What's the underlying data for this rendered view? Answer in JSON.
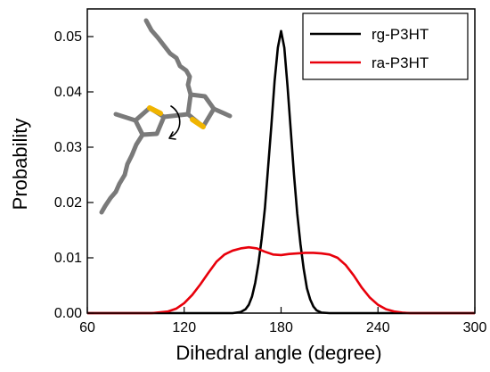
{
  "chart_data": {
    "type": "line",
    "xlabel": "Dihedral angle (degree)",
    "ylabel": "Probability",
    "xlim": [
      60,
      300
    ],
    "ylim": [
      0.0,
      0.055
    ],
    "xticks": [
      "60",
      "120",
      "180",
      "240",
      "300"
    ],
    "yticks": [
      "0.00",
      "0.01",
      "0.02",
      "0.03",
      "0.04",
      "0.05"
    ],
    "grid": false,
    "legend_position": "top-right",
    "series": [
      {
        "name": "rg-P3HT",
        "color": "#000000",
        "x": [
          60,
          150,
          155,
          158,
          160,
          162,
          164,
          166,
          168,
          170,
          172,
          174,
          176,
          178,
          180,
          182,
          184,
          186,
          188,
          190,
          192,
          194,
          196,
          198,
          200,
          202,
          205,
          210,
          300
        ],
        "y": [
          0.0,
          0.0,
          0.0002,
          0.0007,
          0.0015,
          0.003,
          0.0055,
          0.009,
          0.0135,
          0.019,
          0.0265,
          0.034,
          0.042,
          0.048,
          0.051,
          0.048,
          0.041,
          0.033,
          0.025,
          0.018,
          0.0125,
          0.008,
          0.0045,
          0.0025,
          0.0012,
          0.0005,
          0.0001,
          0.0,
          0.0
        ]
      },
      {
        "name": "ra-P3HT",
        "color": "#e8000b",
        "x": [
          60,
          100,
          110,
          115,
          120,
          125,
          130,
          135,
          140,
          145,
          150,
          155,
          160,
          165,
          170,
          175,
          180,
          185,
          190,
          195,
          200,
          205,
          210,
          215,
          220,
          225,
          230,
          235,
          240,
          245,
          250,
          255,
          260,
          300
        ],
        "y": [
          0.0,
          0.0,
          0.0003,
          0.0008,
          0.0018,
          0.0033,
          0.0052,
          0.0073,
          0.0093,
          0.0106,
          0.0113,
          0.0117,
          0.0119,
          0.0117,
          0.0111,
          0.0106,
          0.0105,
          0.0107,
          0.0108,
          0.0109,
          0.0109,
          0.0108,
          0.0106,
          0.01,
          0.0087,
          0.0068,
          0.0046,
          0.0028,
          0.0015,
          0.0007,
          0.0003,
          0.0001,
          0.0,
          0.0
        ]
      }
    ]
  },
  "inset": {
    "name": "thiophene-dimer-structure",
    "bond_color": "#7a7a7a",
    "sulfur_color": "#f0b400"
  }
}
